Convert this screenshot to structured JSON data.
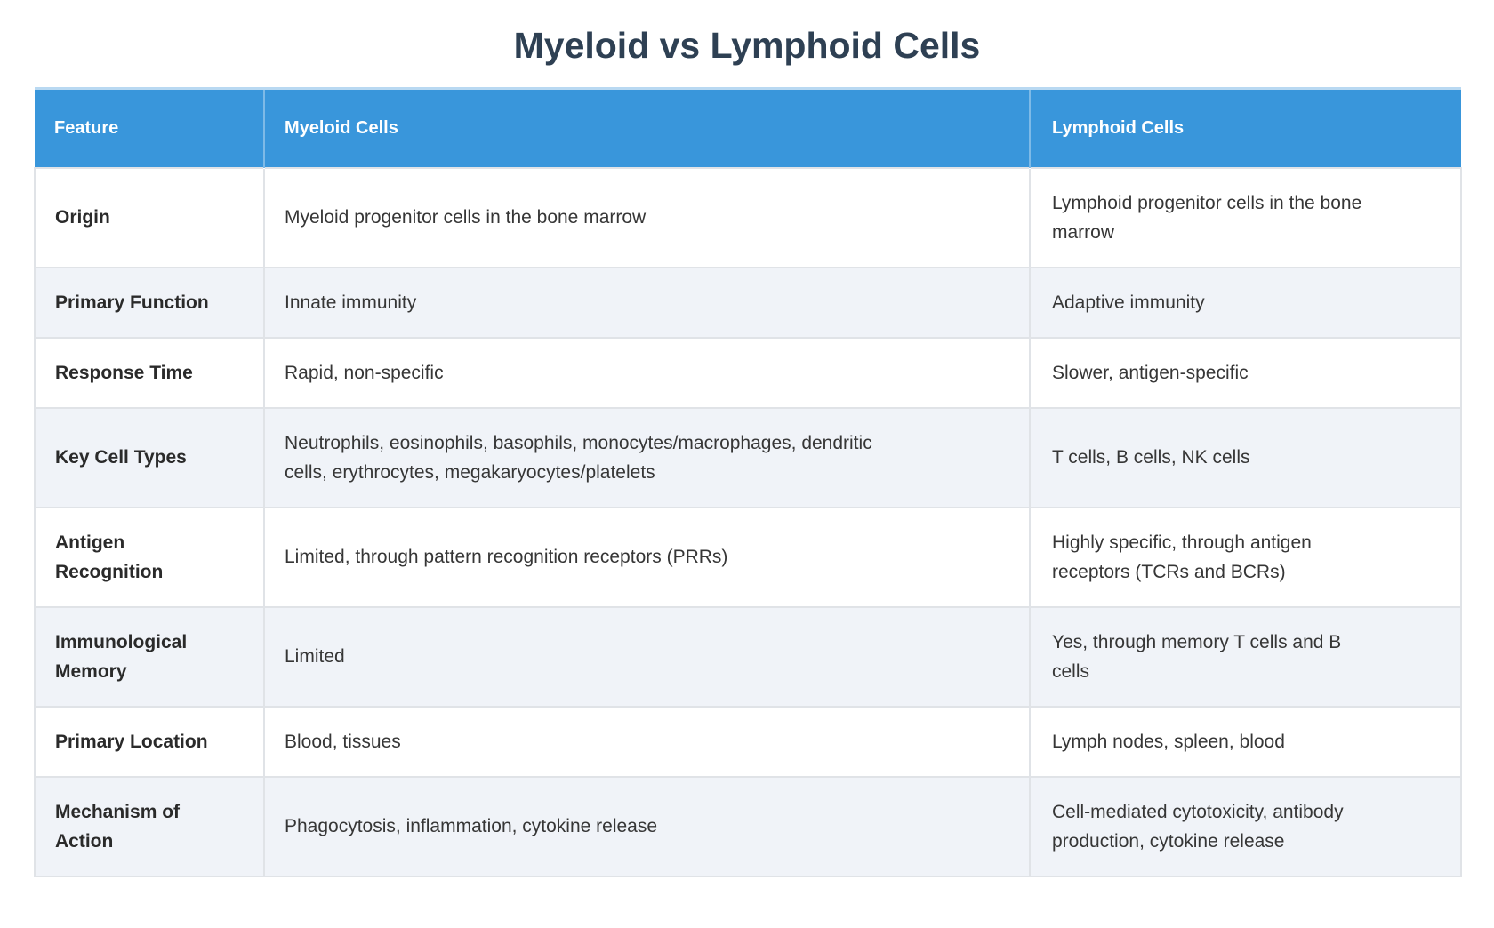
{
  "page_title": "Myeloid vs Lymphoid Cells",
  "table": {
    "headers": [
      "Feature",
      "Myeloid Cells",
      "Lymphoid Cells"
    ],
    "rows": [
      {
        "feature": "Origin",
        "myeloid": "Myeloid progenitor cells in the bone marrow",
        "lymphoid": "Lymphoid progenitor cells in the bone marrow"
      },
      {
        "feature": "Primary Function",
        "myeloid": "Innate immunity",
        "lymphoid": "Adaptive immunity"
      },
      {
        "feature": "Response Time",
        "myeloid": "Rapid, non-specific",
        "lymphoid": "Slower, antigen-specific"
      },
      {
        "feature": "Key Cell Types",
        "myeloid": "Neutrophils, eosinophils, basophils, monocytes/macrophages, dendritic cells, erythrocytes, megakaryocytes/platelets",
        "lymphoid": "T cells, B cells, NK cells"
      },
      {
        "feature": "Antigen Recognition",
        "myeloid": "Limited, through pattern recognition receptors (PRRs)",
        "lymphoid": "Highly specific, through antigen receptors (TCRs and BCRs)"
      },
      {
        "feature": "Immunological Memory",
        "myeloid": "Limited",
        "lymphoid": "Yes, through memory T cells and B cells"
      },
      {
        "feature": "Primary Location",
        "myeloid": "Blood, tissues",
        "lymphoid": "Lymph nodes, spleen, blood"
      },
      {
        "feature": "Mechanism of Action",
        "myeloid": "Phagocytosis, inflammation, cytokine release",
        "lymphoid": "Cell-mediated cytotoxicity, antibody production, cytokine release"
      }
    ]
  },
  "colors": {
    "header_bg": "#3996db",
    "header_text": "#ffffff",
    "header_top_border": "#b9d9f2",
    "row_bg": "#ffffff",
    "row_alt_bg": "#f0f3f8",
    "cell_border": "#e0e3e7",
    "title_text": "#2e4053",
    "body_text": "#363636"
  }
}
